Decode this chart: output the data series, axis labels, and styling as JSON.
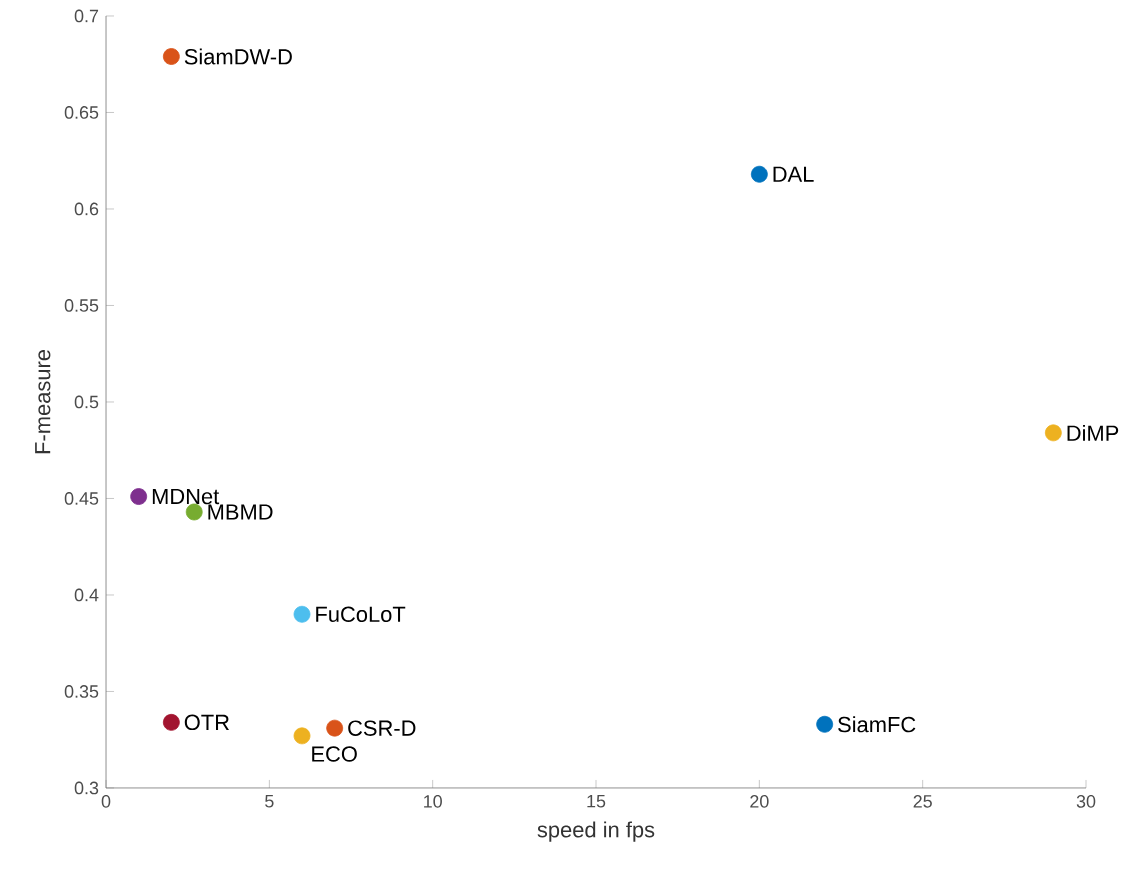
{
  "chart_data": {
    "type": "scatter",
    "xlabel": "speed in fps",
    "ylabel": "F-measure",
    "marker": "circle",
    "grid": false,
    "xlim": [
      0,
      30
    ],
    "ylim": [
      0.3,
      0.7
    ],
    "xticks": [
      0,
      5,
      10,
      15,
      20,
      25,
      30
    ],
    "yticks": [
      0.3,
      0.35,
      0.4,
      0.45,
      0.5,
      0.55,
      0.6,
      0.65,
      0.7
    ],
    "series": [
      {
        "name": "SiamDW-D",
        "color": "#d95319",
        "x": [
          2
        ],
        "values": [
          0.679
        ]
      },
      {
        "name": "DAL",
        "color": "#0072bd",
        "x": [
          20
        ],
        "values": [
          0.618
        ]
      },
      {
        "name": "DiMP",
        "color": "#edb120",
        "x": [
          29
        ],
        "values": [
          0.484
        ]
      },
      {
        "name": "MDNet",
        "color": "#7e2f8e",
        "x": [
          1
        ],
        "values": [
          0.451
        ]
      },
      {
        "name": "MBMD",
        "color": "#77ac30",
        "x": [
          2.7
        ],
        "values": [
          0.443
        ]
      },
      {
        "name": "FuCoLoT",
        "color": "#4dbeee",
        "x": [
          6
        ],
        "values": [
          0.39
        ]
      },
      {
        "name": "OTR",
        "color": "#a2142f",
        "x": [
          2
        ],
        "values": [
          0.334
        ]
      },
      {
        "name": "CSR-D",
        "color": "#d95319",
        "x": [
          7
        ],
        "values": [
          0.331
        ]
      },
      {
        "name": "ECO",
        "color": "#edb120",
        "x": [
          6
        ],
        "values": [
          0.327
        ]
      },
      {
        "name": "SiamFC",
        "color": "#0072bd",
        "x": [
          22
        ],
        "values": [
          0.333
        ]
      }
    ]
  }
}
